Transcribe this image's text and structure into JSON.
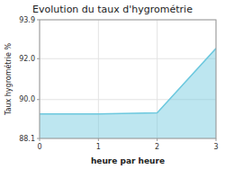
{
  "chart_data": {
    "type": "area",
    "title": "Evolution du taux d'hygrométrie",
    "x_label": "heure par heure",
    "y_label": "Taux hygrométrie %",
    "x": [
      0,
      1,
      2,
      3
    ],
    "values": [
      89.3,
      89.3,
      89.35,
      92.5
    ],
    "color": "#6cc8de",
    "xlim": [
      0,
      3
    ],
    "ylim": [
      88.1,
      93.9
    ],
    "xticks": [
      0,
      1,
      2,
      3
    ],
    "yticks": [
      88.1,
      {
        "value": 90,
        "label": "90.0"
      },
      {
        "value": 92,
        "label": "92.0"
      },
      93.9
    ],
    "grid": true
  }
}
